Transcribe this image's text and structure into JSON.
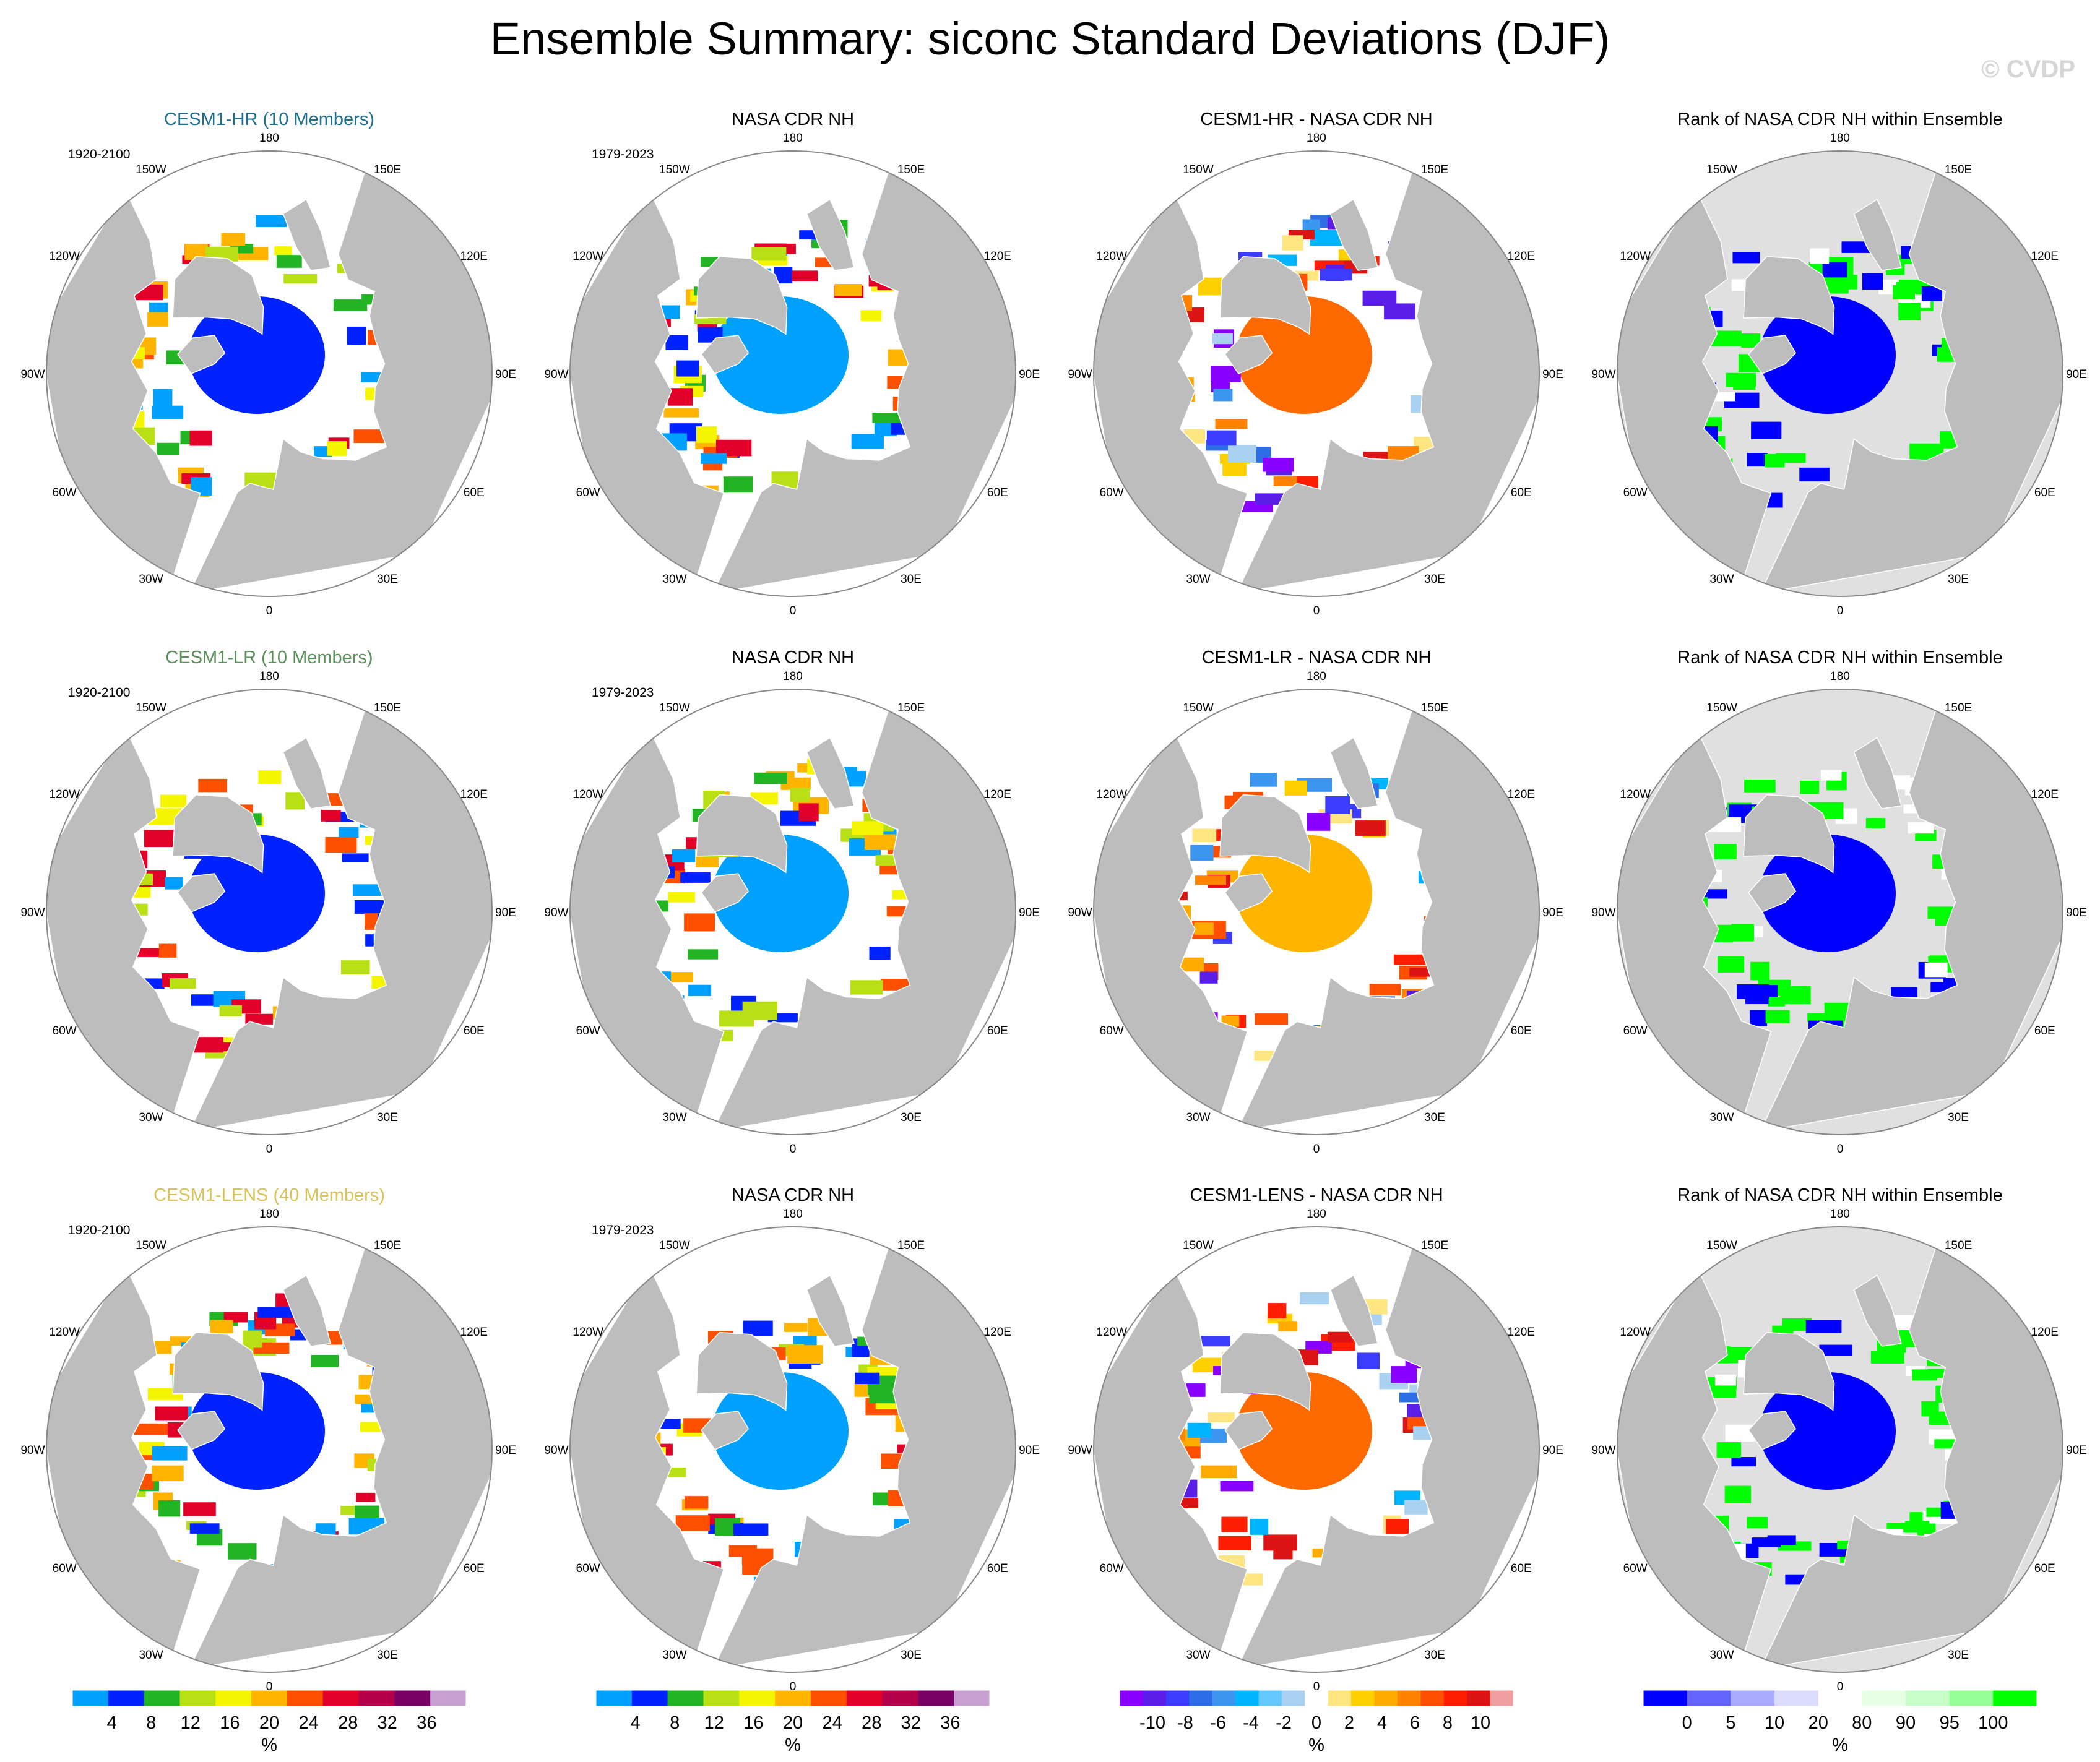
{
  "page": {
    "title": "Ensemble Summary: siconc Standard Deviations (DJF)",
    "watermark": "© CVDP"
  },
  "panels": [
    {
      "title": "CESM1-HR (10 Members)",
      "title_color": "#1f6f8f",
      "period": "1920-2100",
      "kind": "sd",
      "seed": 11,
      "row": 0,
      "col": 0
    },
    {
      "title": "NASA CDR NH",
      "title_color": "#000000",
      "period": "1979-2023",
      "kind": "obs",
      "seed": 12,
      "row": 0,
      "col": 1
    },
    {
      "title": "CESM1-HR - NASA CDR NH",
      "title_color": "#000000",
      "period": "",
      "kind": "diff",
      "seed": 13,
      "row": 0,
      "col": 2
    },
    {
      "title": "Rank of NASA CDR NH within Ensemble",
      "title_color": "#000000",
      "period": "",
      "kind": "rank",
      "seed": 14,
      "row": 0,
      "col": 3
    },
    {
      "title": "CESM1-LR (10 Members)",
      "title_color": "#5a8f5a",
      "period": "1920-2100",
      "kind": "sd",
      "seed": 21,
      "row": 1,
      "col": 0
    },
    {
      "title": "NASA CDR NH",
      "title_color": "#000000",
      "period": "1979-2023",
      "kind": "obs",
      "seed": 22,
      "row": 1,
      "col": 1
    },
    {
      "title": "CESM1-LR - NASA CDR NH",
      "title_color": "#000000",
      "period": "",
      "kind": "diff",
      "seed": 23,
      "row": 1,
      "col": 2
    },
    {
      "title": "Rank of NASA CDR NH within Ensemble",
      "title_color": "#000000",
      "period": "",
      "kind": "rank",
      "seed": 24,
      "row": 1,
      "col": 3
    },
    {
      "title": "CESM1-LENS (40 Members)",
      "title_color": "#d9c35a",
      "period": "1920-2100",
      "kind": "sd",
      "seed": 31,
      "row": 2,
      "col": 0
    },
    {
      "title": "NASA CDR NH",
      "title_color": "#000000",
      "period": "1979-2023",
      "kind": "obs",
      "seed": 32,
      "row": 2,
      "col": 1
    },
    {
      "title": "CESM1-LENS - NASA CDR NH",
      "title_color": "#000000",
      "period": "",
      "kind": "diff",
      "seed": 33,
      "row": 2,
      "col": 2
    },
    {
      "title": "Rank of NASA CDR NH within Ensemble",
      "title_color": "#000000",
      "period": "",
      "kind": "rank",
      "seed": 34,
      "row": 2,
      "col": 3
    }
  ],
  "lon_labels": [
    {
      "text": "180",
      "lon": 180
    },
    {
      "text": "150E",
      "lon": 150
    },
    {
      "text": "120E",
      "lon": 120
    },
    {
      "text": "90E",
      "lon": 90
    },
    {
      "text": "60E",
      "lon": 60
    },
    {
      "text": "30E",
      "lon": 30
    },
    {
      "text": "0",
      "lon": 0
    },
    {
      "text": "30W",
      "lon": -30
    },
    {
      "text": "60W",
      "lon": -60
    },
    {
      "text": "90W",
      "lon": -90
    },
    {
      "text": "120W",
      "lon": -120
    },
    {
      "text": "150W",
      "lon": -150
    }
  ],
  "colorbars": [
    {
      "unit": "%",
      "colors": [
        "#00a0ff",
        "#0022ff",
        "#22b422",
        "#b8e014",
        "#f5f500",
        "#ffb400",
        "#ff5000",
        "#e10028",
        "#b4004a",
        "#780064",
        "#c8a0d2"
      ],
      "ticks": [
        "4",
        "8",
        "12",
        "16",
        "20",
        "24",
        "28",
        "32",
        "36"
      ]
    },
    {
      "unit": "%",
      "colors": [
        "#00a0ff",
        "#0022ff",
        "#22b422",
        "#b8e014",
        "#f5f500",
        "#ffb400",
        "#ff5000",
        "#e10028",
        "#b4004a",
        "#780064",
        "#c8a0d2"
      ],
      "ticks": [
        "4",
        "8",
        "12",
        "16",
        "20",
        "24",
        "28",
        "32",
        "36"
      ]
    },
    {
      "unit": "%",
      "colors": [
        "#8a00ff",
        "#5a1ee6",
        "#3c3cff",
        "#2d6ee6",
        "#3c96f0",
        "#00b4ff",
        "#64c8ff",
        "#aad2f0",
        "#ffffff",
        "#ffe680",
        "#ffd000",
        "#ffaa00",
        "#ff8200",
        "#ff5000",
        "#ff1e00",
        "#dc1414",
        "#f0a0a0"
      ],
      "ticks": [
        "-10",
        "-8",
        "-6",
        "-4",
        "-2",
        "0",
        "2",
        "4",
        "6",
        "8",
        "10"
      ]
    },
    {
      "unit": "%",
      "colors": [
        "#0000ff",
        "#6464ff",
        "#aaaaff",
        "#dcdcff",
        "#ffffff",
        "#e6ffe6",
        "#c8ffc8",
        "#96ff96",
        "#00ff00"
      ],
      "ticks": [
        "0",
        "5",
        "10",
        "20",
        "80",
        "90",
        "95",
        "100"
      ]
    }
  ],
  "chart_data": [
    {
      "type": "heatmap",
      "projection": "north-polar-stereographic",
      "title": "CESM1-HR (10 Members)",
      "variable": "siconc standard deviation",
      "units": "%",
      "period": "1920-2100",
      "levels": [
        4,
        8,
        12,
        16,
        20,
        24,
        28,
        32,
        36
      ]
    },
    {
      "type": "heatmap",
      "projection": "north-polar-stereographic",
      "title": "NASA CDR NH",
      "variable": "siconc standard deviation",
      "units": "%",
      "period": "1979-2023",
      "levels": [
        4,
        8,
        12,
        16,
        20,
        24,
        28,
        32,
        36
      ]
    },
    {
      "type": "heatmap",
      "projection": "north-polar-stereographic",
      "title": "CESM1-HR - NASA CDR NH",
      "variable": "difference",
      "units": "%",
      "levels": [
        -10,
        -8,
        -6,
        -4,
        -2,
        0,
        2,
        4,
        6,
        8,
        10
      ]
    },
    {
      "type": "heatmap",
      "projection": "north-polar-stereographic",
      "title": "Rank of NASA CDR NH within Ensemble",
      "variable": "rank",
      "units": "%",
      "levels": [
        0,
        5,
        10,
        20,
        80,
        90,
        95,
        100
      ]
    },
    {
      "type": "heatmap",
      "projection": "north-polar-stereographic",
      "title": "CESM1-LR (10 Members)",
      "variable": "siconc standard deviation",
      "units": "%",
      "period": "1920-2100",
      "levels": [
        4,
        8,
        12,
        16,
        20,
        24,
        28,
        32,
        36
      ]
    },
    {
      "type": "heatmap",
      "projection": "north-polar-stereographic",
      "title": "NASA CDR NH",
      "variable": "siconc standard deviation",
      "units": "%",
      "period": "1979-2023",
      "levels": [
        4,
        8,
        12,
        16,
        20,
        24,
        28,
        32,
        36
      ]
    },
    {
      "type": "heatmap",
      "projection": "north-polar-stereographic",
      "title": "CESM1-LR - NASA CDR NH",
      "variable": "difference",
      "units": "%",
      "levels": [
        -10,
        -8,
        -6,
        -4,
        -2,
        0,
        2,
        4,
        6,
        8,
        10
      ]
    },
    {
      "type": "heatmap",
      "projection": "north-polar-stereographic",
      "title": "Rank of NASA CDR NH within Ensemble",
      "variable": "rank",
      "units": "%",
      "levels": [
        0,
        5,
        10,
        20,
        80,
        90,
        95,
        100
      ]
    },
    {
      "type": "heatmap",
      "projection": "north-polar-stereographic",
      "title": "CESM1-LENS (40 Members)",
      "variable": "siconc standard deviation",
      "units": "%",
      "period": "1920-2100",
      "levels": [
        4,
        8,
        12,
        16,
        20,
        24,
        28,
        32,
        36
      ]
    },
    {
      "type": "heatmap",
      "projection": "north-polar-stereographic",
      "title": "NASA CDR NH",
      "variable": "siconc standard deviation",
      "units": "%",
      "period": "1979-2023",
      "levels": [
        4,
        8,
        12,
        16,
        20,
        24,
        28,
        32,
        36
      ]
    },
    {
      "type": "heatmap",
      "projection": "north-polar-stereographic",
      "title": "CESM1-LENS - NASA CDR NH",
      "variable": "difference",
      "units": "%",
      "levels": [
        -10,
        -8,
        -6,
        -4,
        -2,
        0,
        2,
        4,
        6,
        8,
        10
      ]
    },
    {
      "type": "heatmap",
      "projection": "north-polar-stereographic",
      "title": "Rank of NASA CDR NH within Ensemble",
      "variable": "rank",
      "units": "%",
      "levels": [
        0,
        5,
        10,
        20,
        80,
        90,
        95,
        100
      ]
    }
  ]
}
